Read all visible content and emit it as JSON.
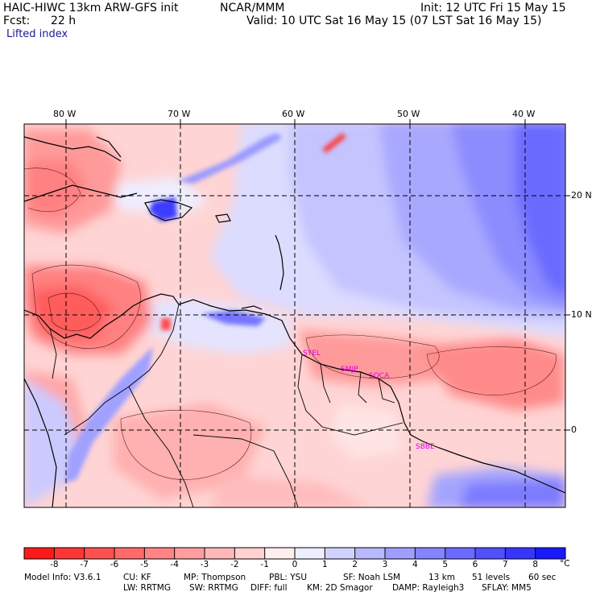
{
  "header": {
    "model_title": "HAIC-HIWC 13km ARW-GFS init",
    "institution": "NCAR/MMM",
    "init": "Init: 12 UTC Fri 15 May 15",
    "fcst_label": "Fcst:",
    "fcst_value": "22 h",
    "valid": "Valid: 10 UTC Sat 16 May 15 (07 LST Sat 16 May 15)",
    "field": "Lifted index"
  },
  "map": {
    "lon_labels": [
      "80 W",
      "70 W",
      "60 W",
      "50 W",
      "40 W"
    ],
    "lat_labels": [
      "20 N",
      "10 N",
      "0"
    ],
    "stations": [
      "SYEL",
      "SMJP",
      "SOCA",
      "SBBE"
    ],
    "colors": {
      "station_label": "#e000e0",
      "grid": "#000000",
      "coast": "#000000"
    }
  },
  "colorbar": {
    "ticks": [
      "-8",
      "-7",
      "-6",
      "-5",
      "-4",
      "-3",
      "-2",
      "-1",
      "0",
      "1",
      "2",
      "3",
      "4",
      "5",
      "6",
      "7",
      "8"
    ],
    "unit": "°C",
    "colors": [
      "#ff1a1a",
      "#ff3636",
      "#ff5050",
      "#ff6a6a",
      "#ff8484",
      "#ff9e9e",
      "#ffb8b8",
      "#ffd2d2",
      "#ffeeee",
      "#eeeeff",
      "#d2d2ff",
      "#b8b8ff",
      "#9e9eff",
      "#8484ff",
      "#6a6aff",
      "#5050ff",
      "#3636ff",
      "#1a1aff"
    ]
  },
  "footer": {
    "line1": [
      "Model Info: V3.6.1",
      "CU: KF",
      "MP: Thompson",
      "PBL: YSU",
      "SF: Noah LSM",
      "13 km",
      "51 levels",
      "60 sec"
    ],
    "line2": [
      "LW: RRTMG",
      "SW: RRTMG",
      "DIFF: full",
      "KM: 2D Smagor",
      "DAMP: Rayleigh3",
      "SFLAY: MM5"
    ]
  }
}
